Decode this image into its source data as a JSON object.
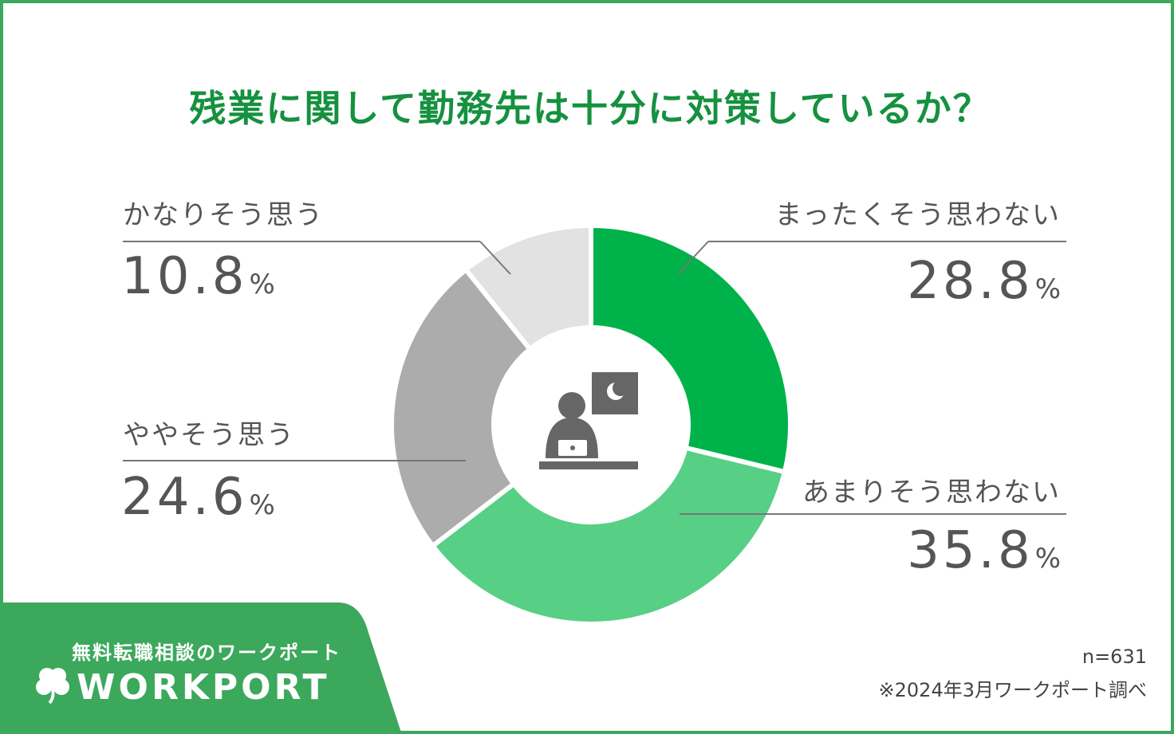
{
  "title": "残業に関して勤務先は十分に対策しているか？",
  "percent_sign": "%",
  "chart_data": {
    "type": "pie",
    "title": "残業に関して勤務先は十分に対策しているか？",
    "slices": [
      {
        "label": "まったくそう思わない",
        "value": 28.8,
        "value_text": "28.8",
        "color": "#00b24a"
      },
      {
        "label": "あまりそう思わない",
        "value": 35.8,
        "value_text": "35.8",
        "color": "#57cf85"
      },
      {
        "label": "ややそう思う",
        "value": 24.6,
        "value_text": "24.6",
        "color": "#acacac"
      },
      {
        "label": "かなりそう思う",
        "value": 10.8,
        "value_text": "10.8",
        "color": "#e2e2e2"
      }
    ],
    "unit": "%",
    "donut": true,
    "center_icon": "person-working-at-laptop-night-icon"
  },
  "footer": {
    "sample_size": "n=631",
    "source": "※2024年3月ワークポート調べ"
  },
  "brand": {
    "tagline": "無料転職相談のワークポート",
    "logo_text": "WORKPORT",
    "logo_icon": "clover-icon",
    "color": "#3ca85c"
  }
}
